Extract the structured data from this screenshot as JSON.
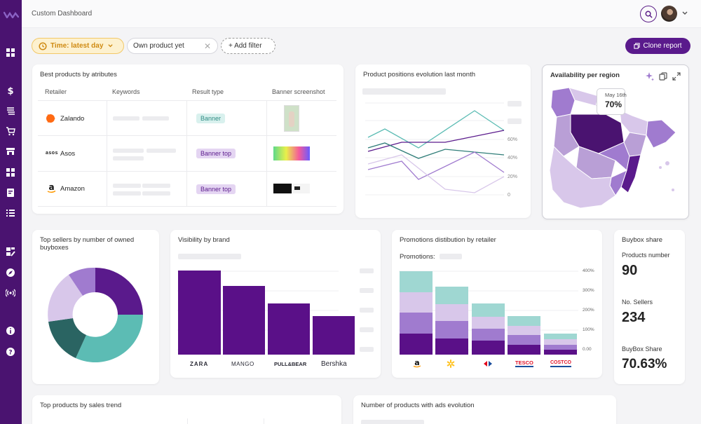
{
  "topbar": {
    "breadcrumb": "Custom Dashboard"
  },
  "filters": {
    "time_label": "Time: latest day",
    "product_value": "Own product yet",
    "add_label": "+ Add filter"
  },
  "actions": {
    "clone_label": "Clone report"
  },
  "best_products": {
    "title": "Best products by atributes",
    "columns": [
      "Retailer",
      "Keywords",
      "Result type",
      "Banner screenshot"
    ],
    "rows": [
      {
        "retailer": "Zalando",
        "result_type": "Banner"
      },
      {
        "retailer": "Asos",
        "result_type": "Banner top"
      },
      {
        "retailer": "Amazon",
        "result_type": "Banner top"
      }
    ],
    "asos_logo_text": "asos"
  },
  "positions": {
    "title": "Product positions evolution last month",
    "y_ticks": [
      "60%",
      "40%",
      "20%",
      "0"
    ]
  },
  "availability": {
    "title": "Availability per region",
    "tooltip_date": "May 16th",
    "tooltip_value": "70%"
  },
  "top_sellers": {
    "title": "Top sellers by number of owned buyboxes"
  },
  "visibility": {
    "title": "Visibility by brand",
    "brands": [
      "ZARA",
      "MANGO",
      "PULL&BEAR",
      "Bershka"
    ]
  },
  "promotions": {
    "title": "Promotions distibution by retailer",
    "subtitle": "Promotions:",
    "y_ticks": [
      "400%",
      "300%",
      "200%",
      "100%",
      "0.00"
    ],
    "retailers": [
      "amazon",
      "walmart",
      "carrefour",
      "TESCO",
      "COSTCO"
    ]
  },
  "buybox": {
    "title": "Buybox share",
    "products_label": "Products number",
    "products_value": "90",
    "sellers_label": "No. Sellers",
    "sellers_value": "234",
    "share_label": "BuyBox Share",
    "share_value": "70.63%"
  },
  "sales_trend": {
    "title": "Top products by sales trend"
  },
  "ads_evolution": {
    "title": "Number of products with ads evolution"
  },
  "colors": {
    "brand": "#4a1370",
    "accent": "#5a1a8c",
    "teal": "#5cbcb4",
    "lavender": "#b99fd6",
    "time_filter": "#cf8a12"
  },
  "icons": [
    "logo-icon",
    "dashboard-icon",
    "dollar-icon",
    "stack-icon",
    "cart-icon",
    "store-icon",
    "grid-icon",
    "report-icon",
    "list-icon",
    "edit-report-icon",
    "compass-icon",
    "signal-icon",
    "info-icon",
    "help-icon",
    "search-icon",
    "clock-icon",
    "sparkle-icon",
    "copy-icon",
    "expand-icon"
  ]
}
